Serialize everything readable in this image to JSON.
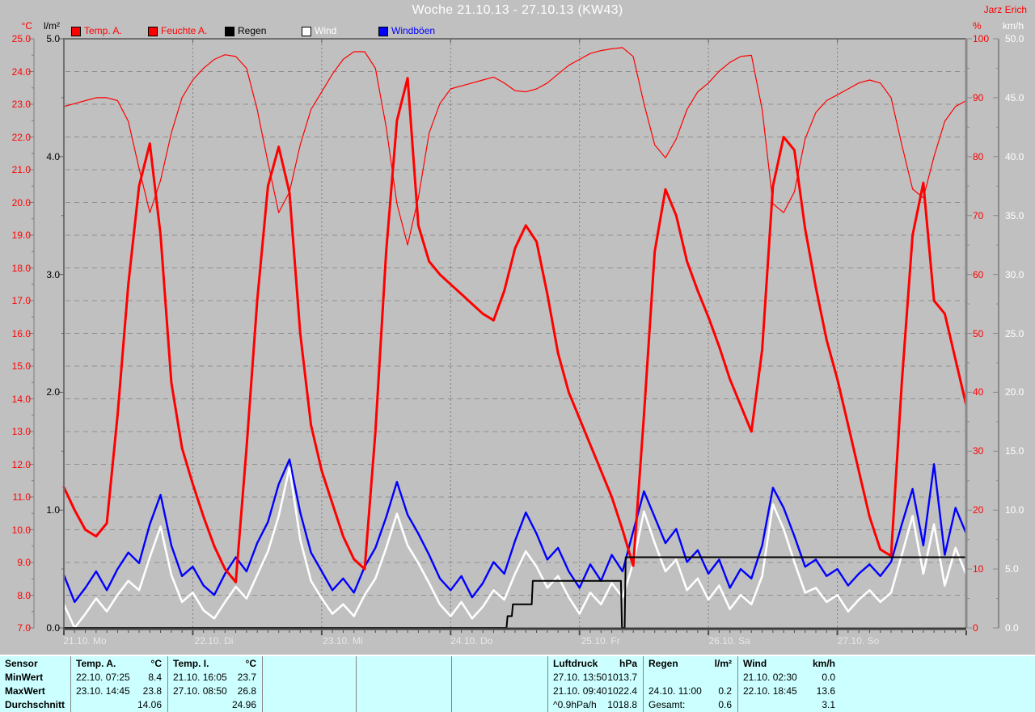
{
  "header": {
    "title": "Woche 21.10.13 - 27.10.13 (KW43)",
    "watermark": "Jarz Erich",
    "axis_headers": {
      "temp": "°C",
      "rain": "l/m²",
      "humidity": "%",
      "wind": "km/h"
    }
  },
  "legend": [
    {
      "label": "Temp. A.",
      "swatch": "#ff0000",
      "text_color": "#ff0000"
    },
    {
      "label": "Feuchte A.",
      "swatch": "#ff0000",
      "text_color": "#ff0000"
    },
    {
      "label": "Regen",
      "swatch": "#000000",
      "text_color": "#000000"
    },
    {
      "label": "Wind",
      "swatch": "#ffffff",
      "text_color": "#ffffff"
    },
    {
      "label": "Windböen",
      "swatch": "#0000ff",
      "text_color": "#0000ff"
    }
  ],
  "axes": {
    "temp": {
      "ticks": [
        "25.0",
        "24.0",
        "23.0",
        "22.0",
        "21.0",
        "20.0",
        "19.0",
        "18.0",
        "17.0",
        "16.0",
        "15.0",
        "14.0",
        "13.0",
        "12.0",
        "11.0",
        "10.0",
        "9.0",
        "8.0",
        "7.0"
      ],
      "color": "#ff0000"
    },
    "rain": {
      "ticks": [
        "5.0",
        "4.0",
        "3.0",
        "2.0",
        "1.0",
        "0.0"
      ],
      "color": "#000000"
    },
    "humidity": {
      "ticks": [
        "100",
        "90",
        "80",
        "70",
        "60",
        "50",
        "40",
        "30",
        "20",
        "10",
        "0"
      ],
      "color": "#ff0000"
    },
    "wind": {
      "ticks": [
        "50.0",
        "45.0",
        "40.0",
        "35.0",
        "30.0",
        "25.0",
        "20.0",
        "15.0",
        "10.0",
        "5.0",
        "0.0"
      ],
      "color": "#ffffff"
    },
    "x_days": [
      "21.10. Mo",
      "22.10. Di",
      "23.10. Mi",
      "24.10. Do",
      "25.10. Fr",
      "26.10. Sa",
      "27.10. So"
    ]
  },
  "chart_data": {
    "type": "line",
    "title": "Woche 21.10.13 - 27.10.13 (KW43)",
    "x_axis": {
      "unit": "days",
      "start": "21.10.13",
      "end": "27.10.13",
      "sample_interval_hours": 2
    },
    "axes": {
      "temp": {
        "min": 7,
        "max": 25,
        "unit": "°C"
      },
      "rain": {
        "min": 0,
        "max": 5,
        "unit": "l/m²"
      },
      "humidity": {
        "min": 0,
        "max": 100,
        "unit": "%"
      },
      "wind": {
        "min": 0,
        "max": 50,
        "unit": "km/h"
      }
    },
    "grid": {
      "horizontal_step_degC": 1.0,
      "vertical": "day-boundaries"
    },
    "series": [
      {
        "name": "Feuchte A.",
        "axis": "humidity",
        "color": "#ff0000",
        "width": 1.2,
        "values": [
          88.5,
          89,
          89.5,
          90,
          90,
          89.5,
          86,
          78,
          70.5,
          76,
          84,
          90,
          93,
          95,
          96.5,
          97.3,
          97,
          95,
          88,
          79,
          70.5,
          74,
          82,
          88,
          91,
          94,
          96.5,
          97.8,
          97.8,
          95,
          85,
          72,
          65,
          73,
          84,
          89,
          91.5,
          92,
          92.5,
          93,
          93.5,
          92.5,
          91.2,
          91,
          91.5,
          92.5,
          94,
          95.5,
          96.5,
          97.5,
          98,
          98.3,
          98.5,
          97,
          89,
          82,
          79.8,
          83,
          88,
          91,
          92.5,
          94.5,
          96,
          97,
          97.2,
          88,
          72,
          70.5,
          74,
          83,
          87.5,
          89.5,
          90.5,
          91.5,
          92.5,
          93,
          92.5,
          90,
          82,
          74.5,
          73,
          80,
          86,
          88.5,
          89.5
        ]
      },
      {
        "name": "Windböen",
        "axis": "wind",
        "color": "#0000ff",
        "width": 2.4,
        "values": [
          4.5,
          2.2,
          3.4,
          4.8,
          3.2,
          5.0,
          6.4,
          5.5,
          8.8,
          11.3,
          7.0,
          4.4,
          5.2,
          3.6,
          2.8,
          4.6,
          6.0,
          4.8,
          7.2,
          9.0,
          12.2,
          14.3,
          9.8,
          6.4,
          4.8,
          3.2,
          4.2,
          3.0,
          5.2,
          6.8,
          9.4,
          12.4,
          9.6,
          8.0,
          6.2,
          4.2,
          3.2,
          4.4,
          2.6,
          3.8,
          5.6,
          4.6,
          7.4,
          9.8,
          8.0,
          5.8,
          6.8,
          4.8,
          3.4,
          5.4,
          4.0,
          6.2,
          4.8,
          8.2,
          11.6,
          9.4,
          7.2,
          8.4,
          5.6,
          6.6,
          4.6,
          5.8,
          3.4,
          5.0,
          4.2,
          7.0,
          11.9,
          10.2,
          7.8,
          5.2,
          5.8,
          4.4,
          5.0,
          3.6,
          4.6,
          5.4,
          4.4,
          5.6,
          8.8,
          11.8,
          7.0,
          13.9,
          6.2,
          10.2,
          8.0
        ]
      },
      {
        "name": "Wind",
        "axis": "wind",
        "color": "#ffffff",
        "width": 2.6,
        "values": [
          2.0,
          0.0,
          1.2,
          2.5,
          1.4,
          2.8,
          4.0,
          3.2,
          6.0,
          8.6,
          4.5,
          2.2,
          3.0,
          1.5,
          0.8,
          2.2,
          3.5,
          2.5,
          4.5,
          6.5,
          9.5,
          13.6,
          7.5,
          4.0,
          2.5,
          1.2,
          2.0,
          1.0,
          2.8,
          4.2,
          6.8,
          9.7,
          7.0,
          5.5,
          3.8,
          2.0,
          1.0,
          2.2,
          0.8,
          1.8,
          3.2,
          2.4,
          4.6,
          6.5,
          5.2,
          3.4,
          4.4,
          2.6,
          1.2,
          3.0,
          2.0,
          3.8,
          2.6,
          5.5,
          9.9,
          7.2,
          4.8,
          5.8,
          3.2,
          4.2,
          2.4,
          3.6,
          1.6,
          2.8,
          2.0,
          4.4,
          10.5,
          8.4,
          5.6,
          3.0,
          3.4,
          2.2,
          2.8,
          1.4,
          2.4,
          3.2,
          2.2,
          3.0,
          6.2,
          9.5,
          4.6,
          8.8,
          3.6,
          6.8,
          4.5
        ]
      },
      {
        "name": "Temp. A.",
        "axis": "temp",
        "color": "#ff0000",
        "width": 3,
        "values": [
          11.3,
          10.6,
          10.0,
          9.8,
          10.2,
          13.5,
          17.5,
          20.5,
          21.8,
          19.0,
          14.5,
          12.5,
          11.4,
          10.4,
          9.5,
          8.8,
          8.4,
          12.5,
          17.0,
          20.5,
          21.7,
          20.3,
          16.0,
          13.2,
          11.8,
          10.8,
          9.8,
          9.1,
          8.8,
          13.0,
          18.5,
          22.5,
          23.8,
          19.3,
          18.2,
          17.8,
          17.5,
          17.2,
          16.9,
          16.6,
          16.4,
          17.3,
          18.6,
          19.3,
          18.8,
          17.2,
          15.4,
          14.2,
          13.4,
          12.6,
          11.8,
          11.0,
          10.0,
          8.9,
          13.5,
          18.5,
          20.4,
          19.6,
          18.2,
          17.3,
          16.5,
          15.6,
          14.6,
          13.8,
          13.0,
          15.5,
          20.5,
          22.0,
          21.6,
          19.2,
          17.4,
          15.8,
          14.6,
          13.2,
          11.8,
          10.4,
          9.4,
          9.2,
          14.5,
          19.0,
          20.6,
          17.0,
          16.6,
          15.2,
          13.8
        ]
      },
      {
        "name": "Regen",
        "axis": "rain",
        "color": "#000000",
        "width": 2,
        "points_hour_value": [
          [
            0,
            0
          ],
          [
            82.4,
            0
          ],
          [
            82.6,
            0.1
          ],
          [
            83.4,
            0.1
          ],
          [
            83.6,
            0.2
          ],
          [
            87.1,
            0.2
          ],
          [
            87.3,
            0.4
          ],
          [
            103.7,
            0.4
          ],
          [
            103.9,
            0
          ],
          [
            104.4,
            0
          ],
          [
            104.6,
            0.6
          ],
          [
            168,
            0.6
          ]
        ]
      }
    ]
  },
  "table": {
    "row_labels": [
      "Sensor",
      "MinWert",
      "MaxWert",
      "Durchschnitt"
    ],
    "columns": [
      {
        "header": "Temp. A.",
        "unit": "°C",
        "rows": [
          [
            "22.10.  07:25",
            "8.4"
          ],
          [
            "23.10.  14:45",
            "23.8"
          ],
          [
            "",
            "14.06"
          ]
        ]
      },
      {
        "header": "Temp. I.",
        "unit": "°C",
        "rows": [
          [
            "21.10.  16:05",
            "23.7"
          ],
          [
            "27.10.  08:50",
            "26.8"
          ],
          [
            "",
            "24.96"
          ]
        ]
      },
      {
        "header": "",
        "unit": "",
        "rows": [
          [
            "",
            ""
          ],
          [
            "",
            ""
          ],
          [
            "",
            ""
          ]
        ]
      },
      {
        "header": "",
        "unit": "",
        "rows": [
          [
            "",
            ""
          ],
          [
            "",
            ""
          ],
          [
            "",
            ""
          ]
        ]
      },
      {
        "header": "",
        "unit": "",
        "rows": [
          [
            "",
            ""
          ],
          [
            "",
            ""
          ],
          [
            "",
            ""
          ]
        ]
      },
      {
        "header": "Luftdruck",
        "unit": "hPa",
        "rows": [
          [
            "27.10.  13:50",
            "1013.7"
          ],
          [
            "21.10.  09:40",
            "1022.4"
          ],
          [
            "^0.9hPa/h",
            "1018.8"
          ]
        ]
      },
      {
        "header": "Regen",
        "unit": "l/m²",
        "rows": [
          [
            "",
            ""
          ],
          [
            "24.10.  11:00",
            "0.2"
          ],
          [
            "Gesamt:",
            "0.6"
          ]
        ]
      },
      {
        "header": "Wind",
        "unit": "km/h",
        "rows": [
          [
            "21.10.  02:30",
            "0.0"
          ],
          [
            "22.10.  18:45",
            "13.6"
          ],
          [
            "",
            "3.1"
          ]
        ]
      }
    ]
  },
  "colors": {
    "background": "#c0c0c0",
    "title_text": "#ffffff",
    "watermark_text": "#ff0000",
    "table_background": "#ccffff",
    "grid_line": "#8f8f8f",
    "axis_line": "#707070"
  }
}
